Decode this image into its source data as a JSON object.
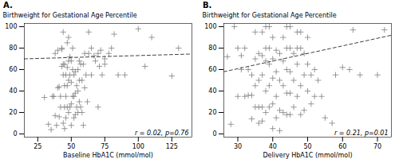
{
  "chart_data": [
    {
      "type": "scatter",
      "title": "A.",
      "xlabel": "Baseline HbA1C (mmol/mol)",
      "ylabel": "Birthweight for Gestational Age Percentile",
      "annotation": "r = 0.02, p=0.76",
      "xlim": [
        15,
        140
      ],
      "ylim": [
        -3,
        103
      ],
      "xticks": [
        25,
        50,
        75,
        100,
        125
      ],
      "yticks": [
        0,
        20,
        40,
        60,
        80,
        100
      ],
      "grid": false,
      "series": [
        {
          "type": "scatter",
          "color": "#7f7f7f",
          "marker": "plus",
          "x": [
            30,
            33,
            35,
            36,
            37,
            38,
            38,
            39,
            40,
            40,
            41,
            41,
            42,
            42,
            43,
            43,
            43,
            44,
            44,
            44,
            44,
            45,
            45,
            45,
            45,
            46,
            46,
            46,
            47,
            47,
            47,
            47,
            48,
            48,
            48,
            48,
            49,
            49,
            49,
            50,
            50,
            50,
            50,
            51,
            51,
            51,
            52,
            52,
            52,
            53,
            53,
            53,
            54,
            54,
            55,
            55,
            55,
            56,
            56,
            56,
            57,
            57,
            58,
            58,
            59,
            59,
            60,
            60,
            61,
            62,
            63,
            63,
            65,
            65,
            67,
            68,
            70,
            70,
            71,
            72,
            73,
            75,
            75,
            78,
            80,
            82,
            85,
            90,
            100,
            105,
            110,
            125,
            130
          ],
          "values": [
            34,
            9,
            4,
            35,
            35,
            17,
            75,
            8,
            43,
            78,
            16,
            44,
            25,
            35,
            63,
            79,
            80,
            10,
            55,
            65,
            95,
            5,
            25,
            45,
            65,
            15,
            35,
            55,
            25,
            45,
            62,
            85,
            20,
            50,
            68,
            90,
            25,
            55,
            72,
            8,
            28,
            48,
            68,
            35,
            60,
            80,
            15,
            35,
            55,
            18,
            38,
            58,
            25,
            45,
            20,
            40,
            60,
            30,
            50,
            68,
            25,
            65,
            20,
            50,
            8,
            65,
            43,
            75,
            55,
            30,
            95,
            75,
            55,
            80,
            73,
            68,
            25,
            75,
            63,
            78,
            55,
            65,
            70,
            75,
            80,
            93,
            55,
            55,
            98,
            63,
            90,
            54,
            80
          ]
        },
        {
          "type": "line",
          "color": "#404040",
          "line_style": "dashed",
          "x": [
            15,
            140
          ],
          "values": [
            70.0,
            74.5
          ]
        }
      ]
    },
    {
      "type": "scatter",
      "title": "B.",
      "xlabel": "Delivery HbA1C (mmol/mol)",
      "ylabel": "Birthweight for Gestational Age Percentile",
      "annotation": "r = 0.21, p=0.01",
      "xlim": [
        26,
        74
      ],
      "ylim": [
        -3,
        103
      ],
      "xticks": [
        30,
        40,
        50,
        60,
        70
      ],
      "yticks": [
        0,
        20,
        40,
        60,
        80,
        100
      ],
      "grid": false,
      "series": [
        {
          "type": "scatter",
          "color": "#7f7f7f",
          "marker": "plus",
          "x": [
            27,
            28,
            29,
            30,
            30,
            31,
            31,
            32,
            32,
            33,
            33,
            34,
            34,
            34,
            35,
            35,
            35,
            35,
            36,
            36,
            36,
            36,
            37,
            37,
            37,
            37,
            37,
            38,
            38,
            38,
            38,
            38,
            39,
            39,
            39,
            39,
            39,
            40,
            40,
            40,
            40,
            40,
            41,
            41,
            41,
            41,
            42,
            42,
            42,
            42,
            43,
            43,
            43,
            43,
            44,
            44,
            44,
            44,
            44,
            45,
            45,
            45,
            45,
            45,
            46,
            46,
            46,
            47,
            47,
            47,
            47,
            48,
            48,
            48,
            48,
            49,
            49,
            49,
            50,
            50,
            50,
            51,
            51,
            52,
            52,
            53,
            54,
            55,
            57,
            58,
            60,
            62,
            63,
            65,
            70,
            72
          ],
          "values": [
            72,
            9,
            100,
            80,
            35,
            60,
            73,
            35,
            80,
            36,
            60,
            14,
            36,
            55,
            25,
            45,
            70,
            95,
            10,
            25,
            50,
            75,
            12,
            25,
            55,
            73,
            95,
            20,
            40,
            68,
            80,
            100,
            25,
            45,
            65,
            80,
            100,
            5,
            28,
            52,
            70,
            90,
            15,
            35,
            58,
            78,
            3,
            22,
            50,
            75,
            20,
            45,
            68,
            90,
            18,
            38,
            60,
            80,
            100,
            18,
            38,
            58,
            80,
            100,
            25,
            50,
            75,
            35,
            65,
            80,
            95,
            18,
            45,
            80,
            95,
            22,
            55,
            75,
            40,
            65,
            90,
            28,
            55,
            35,
            60,
            50,
            35,
            15,
            10,
            55,
            62,
            60,
            97,
            55,
            55,
            97
          ]
        },
        {
          "type": "line",
          "color": "#404040",
          "line_style": "dashed",
          "x": [
            26,
            74
          ],
          "values": [
            58.0,
            92.0
          ]
        }
      ]
    }
  ]
}
